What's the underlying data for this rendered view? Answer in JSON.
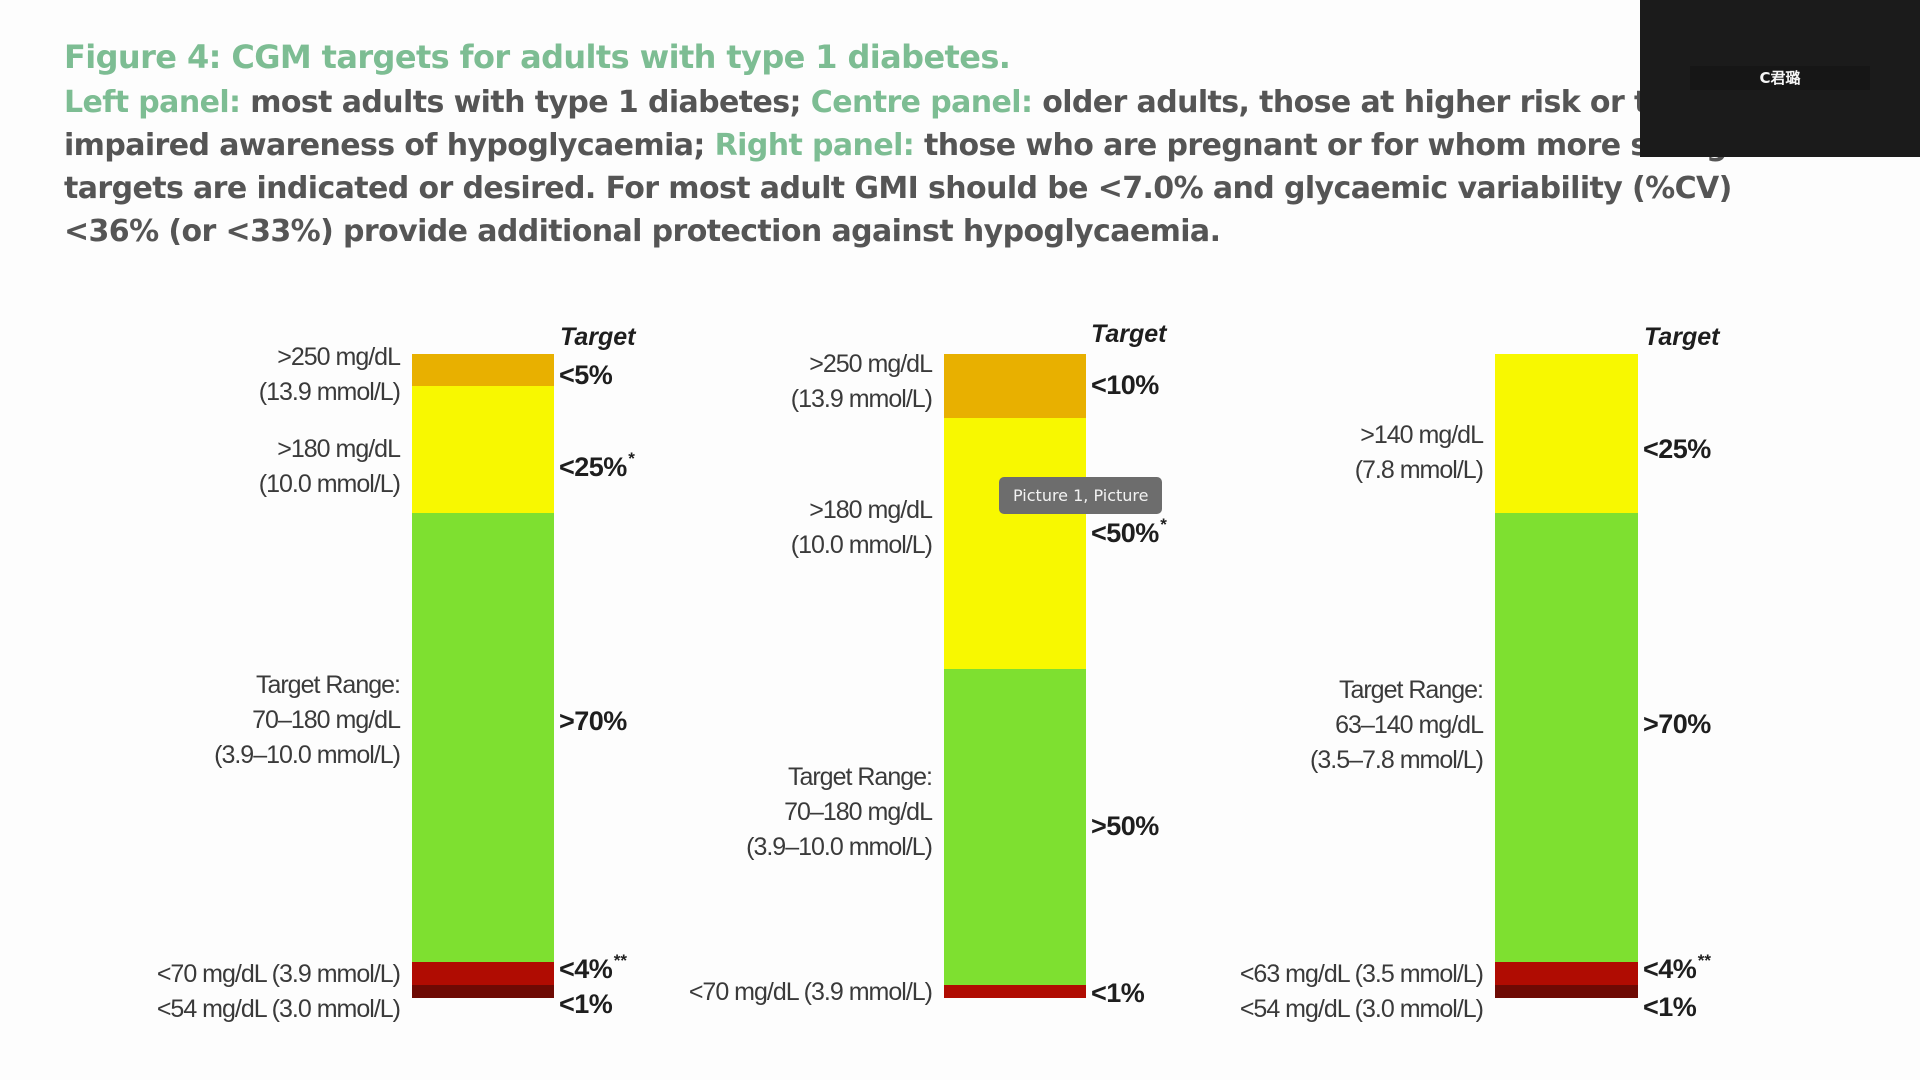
{
  "caption": {
    "title": "Figure 4: CGM targets for adults with type 1 diabetes.",
    "segments": [
      {
        "text": "Left panel:",
        "highlight": true
      },
      {
        "text": " most adults with type 1 diabetes; ",
        "highlight": false
      },
      {
        "text": "Centre panel:",
        "highlight": true
      },
      {
        "text": " older adults, those at higher risk or those with impaired awareness of hypoglycaemia; ",
        "highlight": false
      },
      {
        "text": "Right panel:",
        "highlight": true
      },
      {
        "text": " those who are pregnant or for whom more stringent targets are indicated or desired. For most adult GMI should be <7.0% and glycaemic variability (%CV) <36%  (or <33%) provide additional protection against hypoglycaemia.",
        "highlight": false
      }
    ]
  },
  "tooltip": {
    "text": "Picture 1, Picture"
  },
  "overlay": {
    "participant_name": "C君璐"
  },
  "colors": {
    "caption_accent": "#7dbd93",
    "caption_text": "#555555",
    "very_high": "#e8b000",
    "high": "#f8f800",
    "in_range": "#7ee030",
    "low": "#b00c02",
    "very_low": "#6e0a04"
  },
  "chart_data": {
    "type": "bar",
    "stacked": true,
    "title": "CGM targets for adults with type 1 diabetes",
    "target_header": "Target",
    "panels": [
      {
        "name": "left",
        "population": "most adults with type 1 diabetes",
        "bands": [
          {
            "key": "very_high",
            "label": [
              ">250 mg/dL",
              "(13.9 mmol/L)"
            ],
            "target": "<5%",
            "footnote": "",
            "target_value": 5,
            "comparator": "<"
          },
          {
            "key": "high",
            "label": [
              ">180 mg/dL",
              "(10.0 mmol/L)"
            ],
            "target": "<25%",
            "footnote": "*",
            "target_value": 25,
            "comparator": "<"
          },
          {
            "key": "in_range",
            "label": [
              "Target Range:",
              "70–180 mg/dL",
              "(3.9–10.0 mmol/L)"
            ],
            "target": ">70%",
            "footnote": "",
            "target_value": 70,
            "comparator": ">"
          },
          {
            "key": "low",
            "label": [
              "<70 mg/dL (3.9 mmol/L)"
            ],
            "target": "<4%",
            "footnote": "**",
            "target_value": 4,
            "comparator": "<"
          },
          {
            "key": "very_low",
            "label": [
              "<54 mg/dL (3.0 mmol/L)"
            ],
            "target": "<1%",
            "footnote": "",
            "target_value": 1,
            "comparator": "<"
          }
        ]
      },
      {
        "name": "centre",
        "population": "older adults, those at higher risk or those with impaired awareness of hypoglycaemia",
        "bands": [
          {
            "key": "very_high",
            "label": [
              ">250 mg/dL",
              "(13.9 mmol/L)"
            ],
            "target": "<10%",
            "footnote": "",
            "target_value": 10,
            "comparator": "<"
          },
          {
            "key": "high",
            "label": [
              ">180 mg/dL",
              "(10.0 mmol/L)"
            ],
            "target": "<50%",
            "footnote": "*",
            "target_value": 50,
            "comparator": "<"
          },
          {
            "key": "in_range",
            "label": [
              "Target Range:",
              "70–180 mg/dL",
              "(3.9–10.0 mmol/L)"
            ],
            "target": ">50%",
            "footnote": "",
            "target_value": 50,
            "comparator": ">"
          },
          {
            "key": "low",
            "label": [
              "<70 mg/dL (3.9 mmol/L)"
            ],
            "target": "<1%",
            "footnote": "",
            "target_value": 1,
            "comparator": "<"
          }
        ]
      },
      {
        "name": "right",
        "population": "those who are pregnant or for whom more stringent targets are indicated or desired",
        "bands": [
          {
            "key": "high",
            "label": [
              ">140 mg/dL",
              "(7.8 mmol/L)"
            ],
            "target": "<25%",
            "footnote": "",
            "target_value": 25,
            "comparator": "<"
          },
          {
            "key": "in_range",
            "label": [
              "Target Range:",
              "63–140 mg/dL",
              "(3.5–7.8 mmol/L)"
            ],
            "target": ">70%",
            "footnote": "",
            "target_value": 70,
            "comparator": ">"
          },
          {
            "key": "low",
            "label": [
              "<63 mg/dL (3.5 mmol/L)"
            ],
            "target": "<4%",
            "footnote": "**",
            "target_value": 4,
            "comparator": "<"
          },
          {
            "key": "very_low",
            "label": [
              "<54 mg/dL (3.0 mmol/L)"
            ],
            "target": "<1%",
            "footnote": "",
            "target_value": 1,
            "comparator": "<"
          }
        ]
      }
    ]
  }
}
